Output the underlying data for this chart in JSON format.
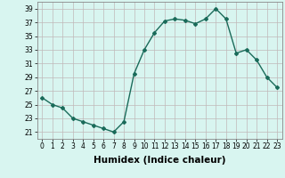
{
  "x": [
    0,
    1,
    2,
    3,
    4,
    5,
    6,
    7,
    8,
    9,
    10,
    11,
    12,
    13,
    14,
    15,
    16,
    17,
    18,
    19,
    20,
    21,
    22,
    23
  ],
  "y": [
    26.0,
    25.0,
    24.5,
    23.0,
    22.5,
    22.0,
    21.5,
    21.0,
    22.5,
    29.5,
    33.0,
    35.5,
    37.2,
    37.5,
    37.3,
    36.8,
    37.5,
    39.0,
    37.5,
    32.5,
    33.0,
    31.5,
    29.0,
    27.5
  ],
  "line_color": "#1a6b5a",
  "marker": "D",
  "marker_size": 2.0,
  "bg_color": "#d8f5f0",
  "grid_color": "#c0b8b8",
  "xlabel": "Humidex (Indice chaleur)",
  "ylim": [
    20,
    40
  ],
  "xlim": [
    -0.5,
    23.5
  ],
  "yticks": [
    21,
    23,
    25,
    27,
    29,
    31,
    33,
    35,
    37,
    39
  ],
  "xticks": [
    0,
    1,
    2,
    3,
    4,
    5,
    6,
    7,
    8,
    9,
    10,
    11,
    12,
    13,
    14,
    15,
    16,
    17,
    18,
    19,
    20,
    21,
    22,
    23
  ],
  "xtick_labels": [
    "0",
    "1",
    "2",
    "3",
    "4",
    "5",
    "6",
    "7",
    "8",
    "9",
    "10",
    "11",
    "12",
    "13",
    "14",
    "15",
    "16",
    "17",
    "18",
    "19",
    "20",
    "21",
    "22",
    "23"
  ],
  "tick_fontsize": 5.5,
  "xlabel_fontsize": 7.5,
  "line_width": 1.0
}
